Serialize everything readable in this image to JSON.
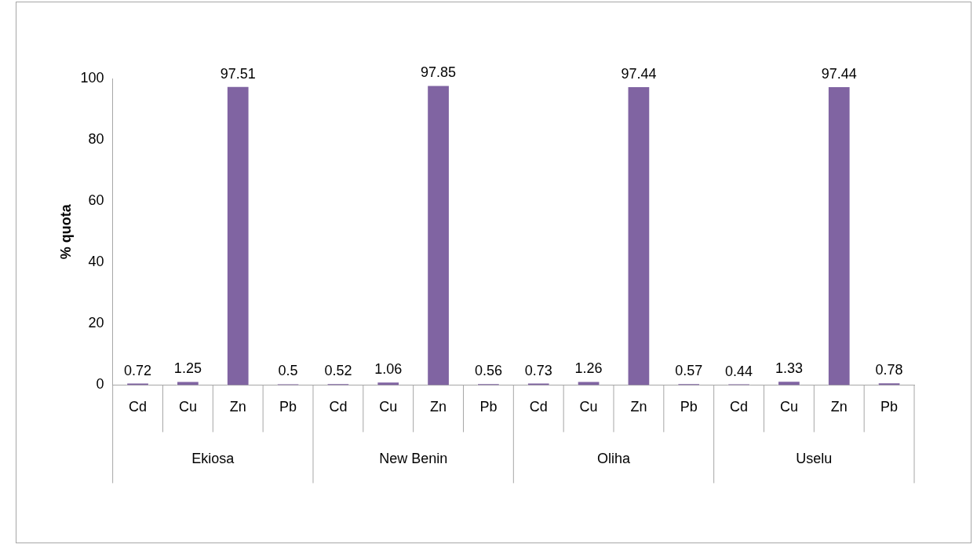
{
  "chart_data": {
    "type": "bar",
    "ylabel": "% quota",
    "categories": [
      "Cd",
      "Cu",
      "Zn",
      "Pb",
      "Cd",
      "Cu",
      "Zn",
      "Pb",
      "Cd",
      "Cu",
      "Zn",
      "Pb",
      "Cd",
      "Cu",
      "Zn",
      "Pb"
    ],
    "values": [
      0.72,
      1.25,
      97.51,
      0.5,
      0.52,
      1.06,
      97.85,
      0.56,
      0.73,
      1.26,
      97.44,
      0.57,
      0.44,
      1.33,
      97.44,
      0.78
    ],
    "color": "#8064a2",
    "ylim": [
      0,
      100
    ],
    "yticks": [
      0,
      20,
      40,
      60,
      80,
      100
    ],
    "data_labels": true,
    "annotations": [
      "Ekiosa",
      "New Benin",
      "Oliha",
      "Uselu"
    ]
  }
}
